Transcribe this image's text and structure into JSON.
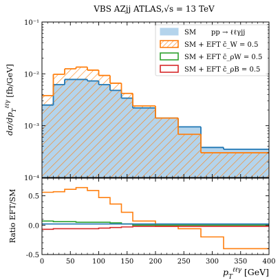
{
  "chart_data": [
    {
      "type": "line",
      "title": "VBS AZjj ATLAS,√s = 13 TeV",
      "xlabel": "",
      "ylabel": "dσ/dp_T^{ℓℓγ} [fb/GeV]",
      "scale": "log",
      "xlim": [
        0,
        400
      ],
      "ylim": [
        0.0001,
        0.1
      ],
      "x_ticks": [
        0,
        50,
        100,
        150,
        200,
        250,
        300,
        350,
        400
      ],
      "y_ticks": [
        {
          "value": 0.0001,
          "label": "10⁻⁴"
        },
        {
          "value": 0.001,
          "label": "10⁻³"
        },
        {
          "value": 0.01,
          "label": "10⁻²"
        },
        {
          "value": 0.1,
          "label": "10⁻¹"
        }
      ],
      "bin_edges": [
        0,
        20,
        40,
        60,
        80,
        100,
        120,
        140,
        160,
        200,
        240,
        280,
        320,
        400
      ],
      "legend_placement": "top-right",
      "legend_header": "pp → ℓℓγjj",
      "series": [
        {
          "name": "SM",
          "style": "filled",
          "color": "#1f77b4",
          "fill": "#b4d4ec",
          "values": [
            0.0025,
            0.0062,
            0.0078,
            0.0078,
            0.0073,
            0.0062,
            0.0048,
            0.0034,
            0.0022,
            0.0014,
            0.00095,
            0.00038,
            0.00035
          ]
        },
        {
          "name": "SM + EFT c̄_W = 0.5",
          "style": "hatched",
          "color": "#ff7f0e",
          "values": [
            0.0038,
            0.0098,
            0.0125,
            0.0135,
            0.0118,
            0.0093,
            0.0066,
            0.0042,
            0.0024,
            0.0014,
            0.00068,
            0.0003,
            0.0003
          ]
        },
        {
          "name": "SM + EFT c̄_ρW = 0.5",
          "style": "step",
          "color": "#2ca02c",
          "values": []
        },
        {
          "name": "SM + EFT c̄_ρB = 0.5",
          "style": "step",
          "color": "#d62728",
          "values": []
        }
      ]
    },
    {
      "type": "line",
      "ylabel": "Ratio EFT/SM",
      "xlabel": "p_T^{ℓℓγ} [GeV]",
      "xlim": [
        0,
        400
      ],
      "ylim": [
        -0.5,
        0.8
      ],
      "x_ticks": [
        0,
        50,
        100,
        150,
        200,
        250,
        300,
        350,
        400
      ],
      "y_ticks": [
        -0.5,
        0.0,
        0.5
      ],
      "bin_edges": [
        0,
        20,
        40,
        60,
        80,
        100,
        120,
        140,
        160,
        200,
        240,
        280,
        320,
        400
      ],
      "series": [
        {
          "name": "c̄_W = 0.5",
          "color": "#ff7f0e",
          "values": [
            0.56,
            0.57,
            0.61,
            0.64,
            0.59,
            0.47,
            0.36,
            0.22,
            0.07,
            -0.02,
            -0.06,
            -0.2,
            -0.4
          ]
        },
        {
          "name": "c̄_ρW = 0.5",
          "color": "#2ca02c",
          "values": [
            0.07,
            0.06,
            0.06,
            0.05,
            0.05,
            0.05,
            0.04,
            0.02,
            0.0,
            0.0,
            0.0,
            0.0,
            0.0
          ]
        },
        {
          "name": "c̄_ρB = 0.5",
          "color": "#d62728",
          "values": [
            -0.07,
            -0.06,
            -0.06,
            -0.06,
            -0.06,
            -0.05,
            -0.04,
            -0.03,
            -0.02,
            -0.02,
            -0.02,
            -0.02,
            -0.02
          ]
        },
        {
          "name": "SM",
          "color": "#1f77b4",
          "values": [
            0.02,
            0.02,
            0.02,
            0.02,
            0.02,
            0.02,
            0.02,
            0.02,
            0.02,
            0.02,
            0.02,
            0.02,
            0.02
          ]
        }
      ]
    }
  ]
}
